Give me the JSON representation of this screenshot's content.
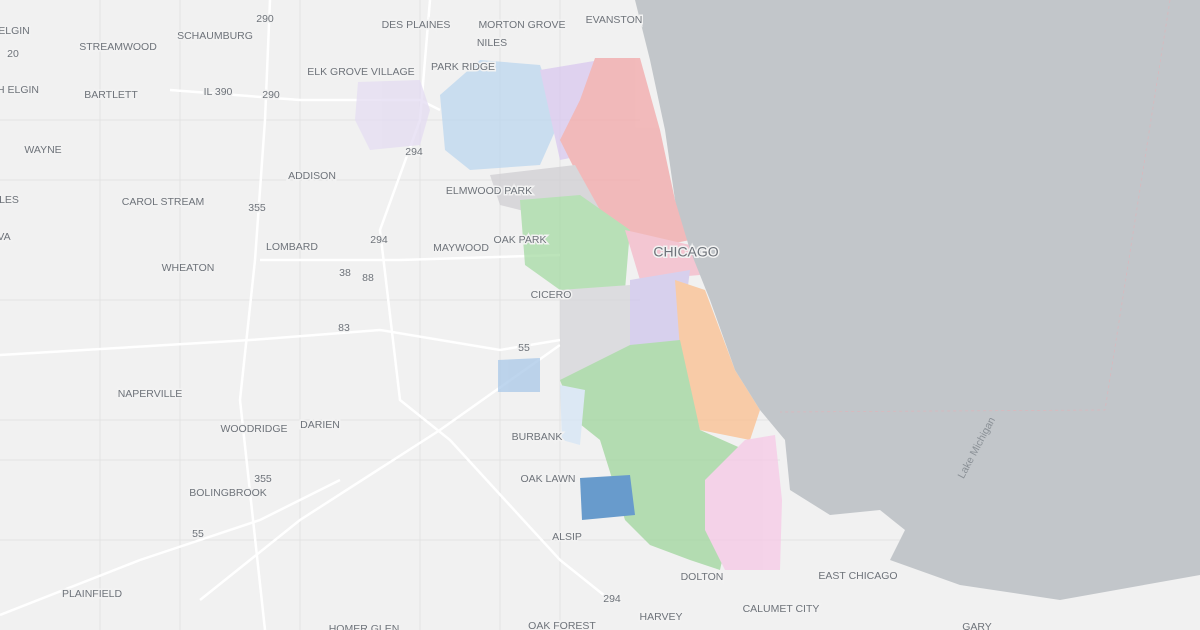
{
  "map": {
    "labels": [
      "ELGIN",
      "20",
      "H ELGIN",
      "STREAMWOOD",
      "SCHAUMBURG",
      "290",
      "DES PLAINES",
      "MORTON GROVE",
      "EVANSTON",
      "NILES",
      "ELK GROVE VILLAGE",
      "PARK RIDGE",
      "BARTLETT",
      "IL 390",
      "290",
      "WAYNE",
      "294",
      "ADDISON",
      "ELMWOOD PARK",
      "LES",
      "CAROL STREAM",
      "355",
      "VA",
      "294",
      "LOMBARD",
      "MAYWOOD",
      "OAK PARK",
      "CHICAGO",
      "WHEATON",
      "38",
      "88",
      "CICERO",
      "83",
      "55",
      "NAPERVILLE",
      "WOODRIDGE",
      "DARIEN",
      "BURBANK",
      "355",
      "OAK LAWN",
      "BOLINGBROOK",
      "55",
      "ALSIP",
      "PLAINFIELD",
      "DOLTON",
      "EAST CHICAGO",
      "294",
      "HARVEY",
      "CALUMET CITY",
      "HOMER GLEN",
      "OAK FOREST",
      "GARY",
      "Lake Michigan"
    ]
  }
}
